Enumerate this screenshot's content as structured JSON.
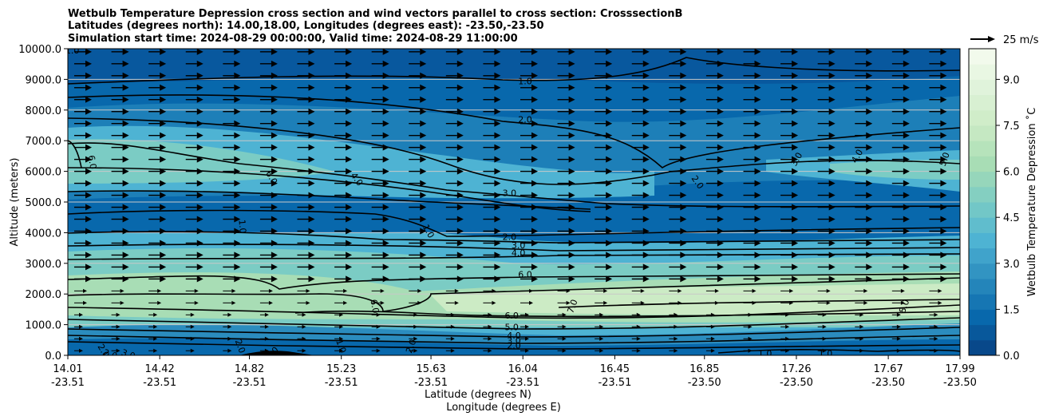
{
  "chart_data": {
    "type": "heatmap",
    "title_lines": [
      "Wetbulb Temperature Depression cross section and wind vectors parallel to cross section: CrosssectionB",
      "Latitudes (degrees north): 14.00,18.00, Longitudes (degrees east): -23.50,-23.50",
      "Simulation start time: 2024-08-29 00:00:00, Valid time: 2024-08-29 11:00:00"
    ],
    "ylabel": "Altitude (meters)",
    "xlabel_lines": [
      "Latitude (degrees N)",
      "Longitude (degrees E)"
    ],
    "ylim": [
      0,
      10000
    ],
    "yticks": [
      "0.0",
      "1000.0",
      "2000.0",
      "3000.0",
      "4000.0",
      "5000.0",
      "6000.0",
      "7000.0",
      "8000.0",
      "9000.0",
      "10000.0"
    ],
    "xlim": [
      14.01,
      17.99
    ],
    "xticks": [
      {
        "lat": "14.01",
        "lon": "-23.51"
      },
      {
        "lat": "14.42",
        "lon": "-23.51"
      },
      {
        "lat": "14.82",
        "lon": "-23.51"
      },
      {
        "lat": "15.23",
        "lon": "-23.51"
      },
      {
        "lat": "15.63",
        "lon": "-23.51"
      },
      {
        "lat": "16.04",
        "lon": "-23.51"
      },
      {
        "lat": "16.45",
        "lon": "-23.51"
      },
      {
        "lat": "16.85",
        "lon": "-23.50"
      },
      {
        "lat": "17.26",
        "lon": "-23.50"
      },
      {
        "lat": "17.67",
        "lon": "-23.50"
      },
      {
        "lat": "17.99",
        "lon": "-23.50"
      }
    ],
    "colorbar": {
      "label": "Wetbulb Temperature Depression ˚C",
      "min": 0,
      "max": 10,
      "ticks": [
        "0.0",
        "1.5",
        "3.0",
        "4.5",
        "6.0",
        "7.5",
        "9.0"
      ],
      "colormap": "GnBu_r",
      "levels": 20
    },
    "wind_key": {
      "label": "25 m/s"
    },
    "contour_labels": [
      {
        "text": "1.0",
        "lat": 16.05,
        "alt": 8950,
        "angle": 0
      },
      {
        "text": "2.0",
        "lat": 16.05,
        "alt": 7700,
        "angle": 0
      },
      {
        "text": "3.0",
        "lat": 15.98,
        "alt": 5300,
        "angle": 0
      },
      {
        "text": "2.0",
        "lat": 15.98,
        "alt": 3870,
        "angle": 0
      },
      {
        "text": "3.0",
        "lat": 16.02,
        "alt": 3600,
        "angle": 0
      },
      {
        "text": "4.0",
        "lat": 16.02,
        "alt": 3350,
        "angle": 0
      },
      {
        "text": "6.0",
        "lat": 16.05,
        "alt": 2640,
        "angle": 0
      },
      {
        "text": "6.0",
        "lat": 15.99,
        "alt": 1300,
        "angle": 0
      },
      {
        "text": "5.0",
        "lat": 15.99,
        "alt": 920,
        "angle": 0
      },
      {
        "text": "4.0",
        "lat": 16.0,
        "alt": 650,
        "angle": 0
      },
      {
        "text": "3.0",
        "lat": 16.0,
        "alt": 480,
        "angle": 0
      },
      {
        "text": "2.0",
        "lat": 16.0,
        "alt": 320,
        "angle": 0
      },
      {
        "text": "6.0",
        "lat": 14.12,
        "alt": 6300,
        "angle": 80
      },
      {
        "text": "6.0",
        "lat": 14.92,
        "alt": 5800,
        "angle": 60
      },
      {
        "text": "4.0",
        "lat": 15.3,
        "alt": 5750,
        "angle": 55
      },
      {
        "text": "1.0",
        "lat": 15.62,
        "alt": 4050,
        "angle": 60
      },
      {
        "text": "1.0",
        "lat": 14.79,
        "alt": 4200,
        "angle": 85
      },
      {
        "text": "2.0",
        "lat": 16.82,
        "alt": 5650,
        "angle": 55
      },
      {
        "text": "3.0",
        "lat": 17.26,
        "alt": 6400,
        "angle": -60
      },
      {
        "text": "4.0",
        "lat": 17.53,
        "alt": 6500,
        "angle": -60
      },
      {
        "text": "5.0",
        "lat": 17.92,
        "alt": 6400,
        "angle": -70
      },
      {
        "text": "6.0",
        "lat": 15.38,
        "alt": 1600,
        "angle": 80
      },
      {
        "text": "7.0",
        "lat": 16.26,
        "alt": 1600,
        "angle": -70
      },
      {
        "text": "8.0",
        "lat": 17.74,
        "alt": 1600,
        "angle": -70
      },
      {
        "text": "1.0",
        "lat": 17.12,
        "alt": 60,
        "angle": 0
      },
      {
        "text": "1.0",
        "lat": 17.39,
        "alt": 60,
        "angle": 0
      },
      {
        "text": "1.0",
        "lat": 14.03,
        "alt": 9950,
        "angle": 0
      },
      {
        "text": "2.0",
        "lat": 14.17,
        "alt": 150,
        "angle": 60
      },
      {
        "text": "2.0",
        "lat": 14.2,
        "alt": 40,
        "angle": 20
      },
      {
        "text": "3.0",
        "lat": 14.28,
        "alt": 40,
        "angle": 20
      },
      {
        "text": "2.0",
        "lat": 14.78,
        "alt": 300,
        "angle": 70
      },
      {
        "text": "3.0",
        "lat": 14.92,
        "alt": 80,
        "angle": -40
      },
      {
        "text": "1.0",
        "lat": 15.23,
        "alt": 300,
        "angle": 70
      },
      {
        "text": "2.0",
        "lat": 15.54,
        "alt": 300,
        "angle": -70
      }
    ]
  }
}
